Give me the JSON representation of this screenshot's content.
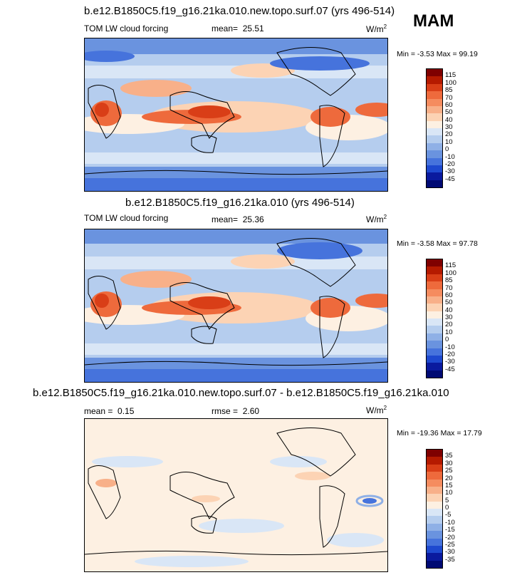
{
  "season": "MAM",
  "panels": [
    {
      "title": "b.e12.B1850C5.f19_g16.21ka.010.new.topo.surf.07 (yrs 496-514)",
      "variable": "TOM LW cloud forcing",
      "stat1_label": "mean=",
      "stat1_value": "25.51",
      "units": "W/m",
      "units_exp": "2",
      "min_max": "Min =  -3.53 Max =  99.19",
      "levels": [
        "115",
        "100",
        "85",
        "70",
        "60",
        "50",
        "40",
        "30",
        "20",
        "10",
        "0",
        "-10",
        "-20",
        "-30",
        "-45"
      ],
      "colors": [
        "#7f0000",
        "#b51a00",
        "#d93e17",
        "#ee6a3c",
        "#f58c5f",
        "#f8b089",
        "#fcd3b4",
        "#fdf0e2",
        "#d9e6f6",
        "#b5cdee",
        "#8fb0e6",
        "#6a93df",
        "#4673dc",
        "#1e49cf",
        "#0a1a9e",
        "#000a73"
      ]
    },
    {
      "title": "b.e12.B1850C5.f19_g16.21ka.010 (yrs 496-514)",
      "variable": "TOM LW cloud forcing",
      "stat1_label": "mean=",
      "stat1_value": "25.36",
      "units": "W/m",
      "units_exp": "2",
      "min_max": "Min =  -3.58 Max =  97.78",
      "levels": [
        "115",
        "100",
        "85",
        "70",
        "60",
        "50",
        "40",
        "30",
        "20",
        "10",
        "0",
        "-10",
        "-20",
        "-30",
        "-45"
      ],
      "colors": [
        "#7f0000",
        "#b51a00",
        "#d93e17",
        "#ee6a3c",
        "#f58c5f",
        "#f8b089",
        "#fcd3b4",
        "#fdf0e2",
        "#d9e6f6",
        "#b5cdee",
        "#8fb0e6",
        "#6a93df",
        "#4673dc",
        "#1e49cf",
        "#0a1a9e",
        "#000a73"
      ]
    },
    {
      "title": "b.e12.B1850C5.f19_g16.21ka.010.new.topo.surf.07 - b.e12.B1850C5.f19_g16.21ka.010",
      "variable": "",
      "stat1_label": "mean =",
      "stat1_value": "0.15",
      "stat2_label": "rmse =",
      "stat2_value": "2.60",
      "units": "W/m",
      "units_exp": "2",
      "min_max": "Min = -19.36 Max =  17.79",
      "levels": [
        "35",
        "30",
        "25",
        "20",
        "15",
        "10",
        "5",
        "0",
        "-5",
        "-10",
        "-15",
        "-20",
        "-25",
        "-30",
        "-35"
      ],
      "colors": [
        "#7f0000",
        "#b51a00",
        "#d93e17",
        "#ee6a3c",
        "#f58c5f",
        "#f8b089",
        "#fcd3b4",
        "#fdf0e2",
        "#d9e6f6",
        "#b5cdee",
        "#8fb0e6",
        "#6a93df",
        "#4673dc",
        "#1e49cf",
        "#0a1a9e",
        "#000a73"
      ]
    }
  ]
}
